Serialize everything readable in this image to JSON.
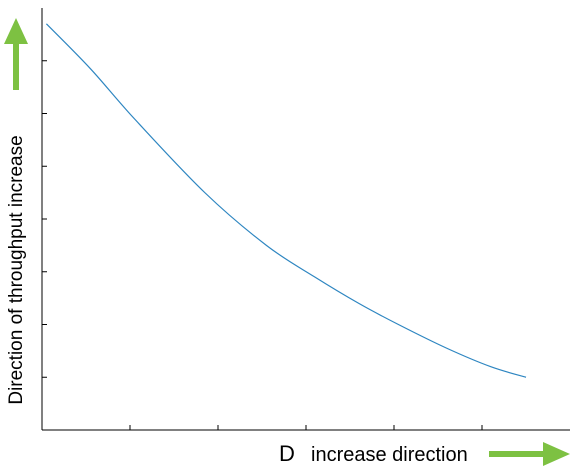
{
  "chart_data": {
    "type": "line",
    "title": "",
    "xlabel_symbol": "D",
    "xlabel": "increase direction",
    "ylabel": "Direction of throughput increase",
    "xlim": [
      0,
      6
    ],
    "ylim": [
      0,
      8
    ],
    "x_ticks": [
      1,
      2,
      3,
      4,
      5
    ],
    "y_ticks": [
      1,
      2,
      3,
      4,
      5,
      6,
      7
    ],
    "grid": false,
    "series": [
      {
        "color": "#2E86C1",
        "x": [
          0.05,
          0.55,
          1.05,
          1.85,
          2.55,
          3.1,
          3.6,
          4.05,
          4.6,
          5.1,
          5.5
        ],
        "y": [
          7.7,
          6.85,
          5.9,
          4.5,
          3.5,
          2.9,
          2.4,
          2.0,
          1.55,
          1.2,
          1.0
        ]
      }
    ],
    "arrow_color": "#7DC142",
    "axis_color": "#000000"
  }
}
